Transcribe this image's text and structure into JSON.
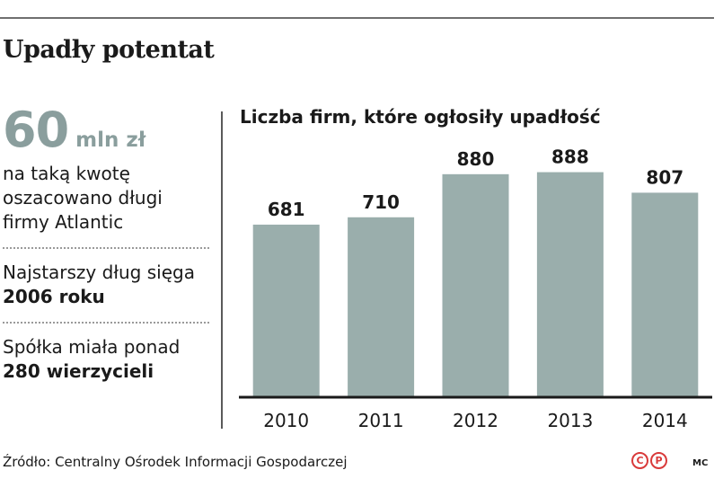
{
  "header": {
    "title": "Upadły potentat"
  },
  "sidebar": {
    "big_number": "60",
    "big_unit": "mln zł",
    "big_desc": "na taką kwotę oszacowano długi firmy Atlantic",
    "fact1_text": "Najstarszy dług sięga",
    "fact1_bold": "2006 roku",
    "fact2_text": "Spółka miała ponad",
    "fact2_bold": "280 wierzycieli"
  },
  "chart_data": {
    "type": "bar",
    "title": "Liczba firm, które ogłosiły upadłość",
    "categories": [
      "2010",
      "2011",
      "2012",
      "2013",
      "2014"
    ],
    "values": [
      681,
      710,
      880,
      888,
      807
    ],
    "data_labels": [
      "681",
      "710",
      "880",
      "888",
      "807"
    ],
    "bar_color": "#9aaeac",
    "axis_color": "#1a1a1a",
    "ylim": [
      0,
      1000
    ],
    "grid": false,
    "legend": "none"
  },
  "footer": {
    "source": "Źródło: Centralny Ośrodek Informacji Gospodarczej",
    "logo_letters": [
      "C",
      "P"
    ],
    "author": "MC"
  }
}
